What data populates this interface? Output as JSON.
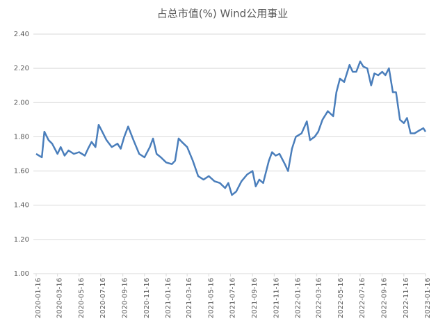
{
  "chart_data": {
    "type": "line",
    "title": "占总市值(%) Wind公用事业",
    "x": [
      "2020-01-16",
      "2020-02-01",
      "2020-02-08",
      "2020-02-20",
      "2020-03-01",
      "2020-03-16",
      "2020-03-25",
      "2020-04-05",
      "2020-04-16",
      "2020-05-01",
      "2020-05-16",
      "2020-06-01",
      "2020-06-10",
      "2020-06-20",
      "2020-07-01",
      "2020-07-10",
      "2020-07-20",
      "2020-08-01",
      "2020-08-16",
      "2020-09-01",
      "2020-09-10",
      "2020-09-20",
      "2020-10-01",
      "2020-10-16",
      "2020-11-01",
      "2020-11-16",
      "2020-12-01",
      "2020-12-10",
      "2020-12-20",
      "2021-01-01",
      "2021-01-16",
      "2021-02-01",
      "2021-02-10",
      "2021-02-20",
      "2021-03-01",
      "2021-03-16",
      "2021-04-01",
      "2021-04-16",
      "2021-05-01",
      "2021-05-16",
      "2021-06-01",
      "2021-06-16",
      "2021-07-01",
      "2021-07-10",
      "2021-07-20",
      "2021-08-01",
      "2021-08-16",
      "2021-09-01",
      "2021-09-16",
      "2021-09-25",
      "2021-10-05",
      "2021-10-16",
      "2021-11-01",
      "2021-11-10",
      "2021-11-20",
      "2021-12-01",
      "2021-12-16",
      "2021-12-25",
      "2022-01-05",
      "2022-01-16",
      "2022-02-01",
      "2022-02-16",
      "2022-02-25",
      "2022-03-10",
      "2022-03-20",
      "2022-04-01",
      "2022-04-16",
      "2022-05-01",
      "2022-05-10",
      "2022-05-20",
      "2022-06-01",
      "2022-06-16",
      "2022-06-25",
      "2022-07-05",
      "2022-07-16",
      "2022-07-25",
      "2022-08-05",
      "2022-08-16",
      "2022-08-25",
      "2022-09-05",
      "2022-09-16",
      "2022-09-25",
      "2022-10-05",
      "2022-10-16",
      "2022-10-25",
      "2022-11-05",
      "2022-11-16",
      "2022-11-25",
      "2022-12-05",
      "2022-12-16",
      "2023-01-01",
      "2023-01-10",
      "2023-01-16"
    ],
    "series": [
      {
        "name": "Wind公用事业",
        "color": "#4a7ebb",
        "values": [
          1.7,
          1.68,
          1.83,
          1.78,
          1.76,
          1.7,
          1.74,
          1.69,
          1.72,
          1.7,
          1.71,
          1.69,
          1.73,
          1.77,
          1.74,
          1.87,
          1.83,
          1.78,
          1.74,
          1.76,
          1.73,
          1.8,
          1.86,
          1.78,
          1.7,
          1.68,
          1.74,
          1.79,
          1.7,
          1.68,
          1.65,
          1.64,
          1.66,
          1.79,
          1.77,
          1.74,
          1.66,
          1.57,
          1.55,
          1.57,
          1.54,
          1.53,
          1.5,
          1.53,
          1.46,
          1.48,
          1.54,
          1.58,
          1.6,
          1.51,
          1.55,
          1.53,
          1.66,
          1.71,
          1.69,
          1.7,
          1.64,
          1.6,
          1.73,
          1.8,
          1.82,
          1.89,
          1.78,
          1.8,
          1.83,
          1.9,
          1.95,
          1.92,
          2.06,
          2.14,
          2.12,
          2.22,
          2.18,
          2.18,
          2.24,
          2.21,
          2.2,
          2.1,
          2.17,
          2.16,
          2.18,
          2.16,
          2.2,
          2.06,
          2.06,
          1.9,
          1.88,
          1.91,
          1.82,
          1.82,
          1.84,
          1.85,
          1.83
        ]
      }
    ],
    "xlim": [
      "2020-01-16",
      "2023-01-16"
    ],
    "xticks": [
      "2020-01-16",
      "2020-03-16",
      "2020-05-16",
      "2020-07-16",
      "2020-09-16",
      "2020-11-16",
      "2021-01-16",
      "2021-03-16",
      "2021-05-16",
      "2021-07-16",
      "2021-09-16",
      "2021-11-16",
      "2022-01-16",
      "2022-03-16",
      "2022-05-16",
      "2022-07-16",
      "2022-09-16",
      "2022-11-16",
      "2023-01-16"
    ],
    "ylim": [
      1.0,
      2.4
    ],
    "yticks": [
      {
        "value": 1.0,
        "label": "1.00"
      },
      {
        "value": 1.2,
        "label": "1.20"
      },
      {
        "value": 1.4,
        "label": "1.40"
      },
      {
        "value": 1.6,
        "label": "1.60"
      },
      {
        "value": 1.8,
        "label": "1.80"
      },
      {
        "value": 2.0,
        "label": "2.00"
      },
      {
        "value": 2.2,
        "label": "2.20"
      },
      {
        "value": 2.4,
        "label": "2.40"
      }
    ],
    "grid": true
  }
}
